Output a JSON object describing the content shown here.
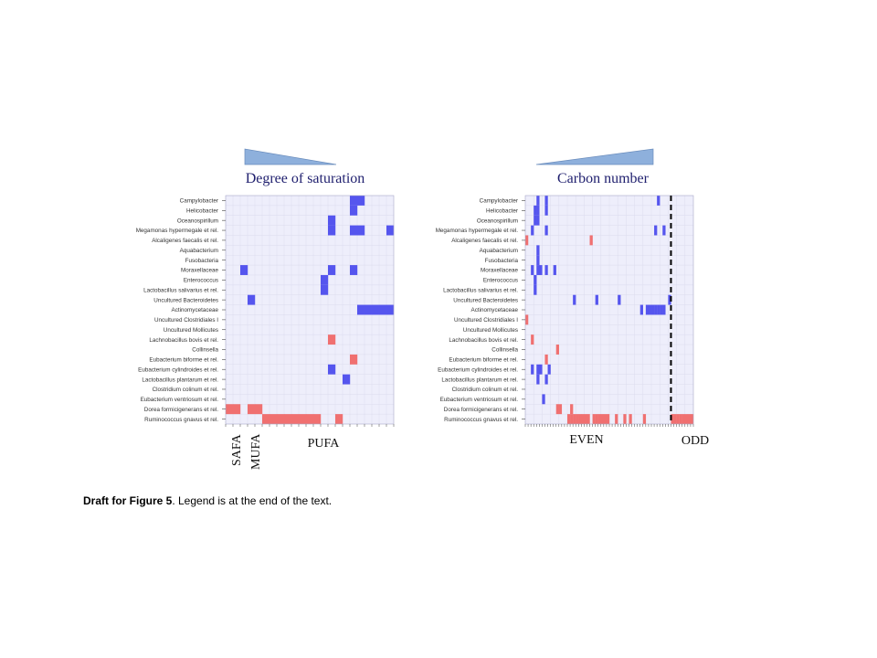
{
  "caption": {
    "bold": "Draft for Figure 5",
    "rest": ". Legend is at the end of the text."
  },
  "colors": {
    "background": "#eeeefb",
    "grid": "#dcdcee",
    "high": "#5555ee",
    "low": "#f07070",
    "triangle": "#8eb0dc",
    "title": "#1f1f6e"
  },
  "chart_data": [
    {
      "type": "heatmap",
      "title": "Degree of saturation",
      "rows": [
        "Campylobacter",
        "Helicobacter",
        "Oceanospirillum",
        "Megamonas hypermegale et rel.",
        "Alcaligenes faecalis et rel.",
        "Aquabacterium",
        "Fusobacteria",
        "Moraxellaceae",
        "Enterococcus",
        "Lactobacillus salivarius et rel.",
        "Uncultured Bacteroidetes",
        "Actinomycetaceae",
        "Uncultured Clostridiales I",
        "Uncultured Mollicutes",
        "Lachnobacillus bovis et rel.",
        "Collinsella",
        "Eubacterium biforme et rel.",
        "Eubacterium cylindroides et rel.",
        "Lactobacillus plantarum et rel.",
        "Clostridium colinum et rel.",
        "Eubacterium ventriosum et rel.",
        "Dorea formicigenerans et rel.",
        "Ruminococcus gnavus et rel."
      ],
      "n_columns": 23,
      "column_groups": [
        {
          "label": "SAFA",
          "from": 0,
          "to": 1
        },
        {
          "label": "MUFA",
          "from": 3,
          "to": 4
        },
        {
          "label": "PUFA",
          "from": 5,
          "to": 22
        }
      ],
      "cells": [
        {
          "row": 0,
          "cols": [
            17,
            18
          ],
          "sign": 1
        },
        {
          "row": 1,
          "cols": [
            17
          ],
          "sign": 1
        },
        {
          "row": 2,
          "cols": [
            14
          ],
          "sign": 1
        },
        {
          "row": 3,
          "cols": [
            14,
            17,
            18,
            22
          ],
          "sign": 1
        },
        {
          "row": 7,
          "cols": [
            2,
            14,
            17
          ],
          "sign": 1
        },
        {
          "row": 8,
          "cols": [
            13
          ],
          "sign": 1
        },
        {
          "row": 9,
          "cols": [
            13
          ],
          "sign": 1
        },
        {
          "row": 10,
          "cols": [
            3
          ],
          "sign": 1
        },
        {
          "row": 11,
          "cols": [
            18,
            19,
            20,
            21,
            22
          ],
          "sign": 1
        },
        {
          "row": 14,
          "cols": [
            14
          ],
          "sign": -1
        },
        {
          "row": 16,
          "cols": [
            17
          ],
          "sign": -1
        },
        {
          "row": 17,
          "cols": [
            14
          ],
          "sign": 1
        },
        {
          "row": 18,
          "cols": [
            16
          ],
          "sign": 1
        },
        {
          "row": 21,
          "cols": [
            0,
            1,
            3,
            4
          ],
          "sign": -1
        },
        {
          "row": 22,
          "cols": [
            5,
            6,
            7,
            8,
            9,
            10,
            11,
            12,
            15
          ],
          "sign": -1
        }
      ]
    },
    {
      "type": "heatmap",
      "title": "Carbon number",
      "rows": [
        "Campylobacter",
        "Helicobacter",
        "Oceanospirillum",
        "Megamonas hypermegale et rel.",
        "Alcaligenes faecalis et rel.",
        "Aquabacterium",
        "Fusobacteria",
        "Moraxellaceae",
        "Enterococcus",
        "Lactobacillus salivarius et rel.",
        "Uncultured Bacteroidetes",
        "Actinomycetaceae",
        "Uncultured Clostridiales I",
        "Uncultured Mollicutes",
        "Lachnobacillus bovis et rel.",
        "Collinsella",
        "Eubacterium biforme et rel.",
        "Eubacterium cylindroides et rel.",
        "Lactobacillus plantarum et rel.",
        "Clostridium colinum et rel.",
        "Eubacterium ventriosum et rel.",
        "Dorea formicigenerans et rel.",
        "Ruminococcus gnavus et rel."
      ],
      "n_columns": 60,
      "column_groups": [
        {
          "label": "EVEN",
          "from": 0,
          "to": 51
        },
        {
          "label": "ODD",
          "from": 52,
          "to": 59
        }
      ],
      "divider_after_column": 51,
      "cells": [
        {
          "row": 0,
          "cols": [
            4,
            7,
            47
          ],
          "sign": 1
        },
        {
          "row": 1,
          "cols": [
            3,
            4,
            7
          ],
          "sign": 1
        },
        {
          "row": 2,
          "cols": [
            3,
            4
          ],
          "sign": 1
        },
        {
          "row": 3,
          "cols": [
            2,
            7,
            46,
            49
          ],
          "sign": 1
        },
        {
          "row": 4,
          "cols": [
            0,
            23
          ],
          "sign": -1
        },
        {
          "row": 5,
          "cols": [
            4
          ],
          "sign": 1
        },
        {
          "row": 6,
          "cols": [
            4
          ],
          "sign": 1
        },
        {
          "row": 7,
          "cols": [
            2,
            4,
            5,
            7,
            10
          ],
          "sign": 1
        },
        {
          "row": 8,
          "cols": [
            3
          ],
          "sign": 1
        },
        {
          "row": 9,
          "cols": [
            3
          ],
          "sign": 1
        },
        {
          "row": 10,
          "cols": [
            17,
            25,
            33,
            51
          ],
          "sign": 1
        },
        {
          "row": 11,
          "cols": [
            41,
            43,
            44,
            45,
            46,
            47,
            48,
            49
          ],
          "sign": 1
        },
        {
          "row": 12,
          "cols": [
            0
          ],
          "sign": -1
        },
        {
          "row": 14,
          "cols": [
            2
          ],
          "sign": -1
        },
        {
          "row": 15,
          "cols": [
            11
          ],
          "sign": -1
        },
        {
          "row": 16,
          "cols": [
            7
          ],
          "sign": -1
        },
        {
          "row": 17,
          "cols": [
            2,
            4,
            5,
            8
          ],
          "sign": 1
        },
        {
          "row": 18,
          "cols": [
            4,
            7
          ],
          "sign": 1
        },
        {
          "row": 20,
          "cols": [
            6
          ],
          "sign": 1
        },
        {
          "row": 21,
          "cols": [
            11,
            12,
            16
          ],
          "sign": -1
        },
        {
          "row": 22,
          "cols": [
            15,
            16,
            17,
            18,
            19,
            20,
            21,
            22,
            24,
            25,
            26,
            27,
            28,
            29,
            32,
            35,
            37,
            42,
            52,
            53,
            54,
            55,
            56,
            57,
            58,
            59
          ],
          "sign": -1
        }
      ]
    }
  ]
}
